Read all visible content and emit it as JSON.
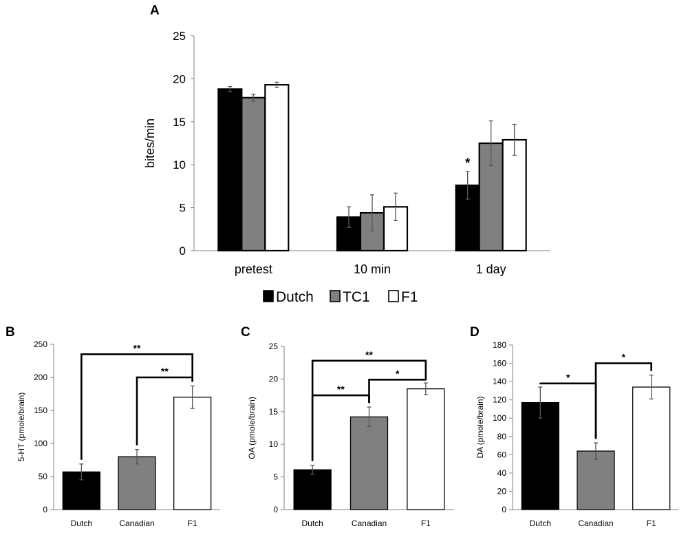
{
  "colors": {
    "Dutch": "#000000",
    "TC1": "#808080",
    "Canadian": "#808080",
    "F1": "#ffffff",
    "axis": "#808080",
    "error": "#555555"
  },
  "chart_data": [
    {
      "panel": "A",
      "type": "bar",
      "ylabel": "bites/min",
      "xlabel": "",
      "ylim": [
        0,
        25
      ],
      "yticks": [
        0,
        5,
        10,
        15,
        20,
        25
      ],
      "categories": [
        "pretest",
        "10 min",
        "1 day"
      ],
      "legend": {
        "placement": "bottom-center",
        "entries": [
          "Dutch",
          "TC1",
          "F1"
        ]
      },
      "series": [
        {
          "name": "Dutch",
          "values": [
            18.8,
            3.9,
            7.6
          ],
          "errors": [
            0.3,
            1.2,
            1.6
          ]
        },
        {
          "name": "TC1",
          "values": [
            17.8,
            4.4,
            12.5
          ],
          "errors": [
            0.4,
            2.1,
            2.6
          ]
        },
        {
          "name": "F1",
          "values": [
            19.3,
            5.1,
            12.9
          ],
          "errors": [
            0.3,
            1.6,
            1.8
          ]
        }
      ],
      "annotations": [
        {
          "text": "*",
          "series": "Dutch",
          "category": "1 day"
        }
      ]
    },
    {
      "panel": "B",
      "type": "bar",
      "ylabel": "5-HT (pmole/brain)",
      "xlabel": "",
      "ylim": [
        0,
        250
      ],
      "yticks": [
        0,
        50,
        100,
        150,
        200,
        250
      ],
      "categories": [
        "Dutch",
        "Canadian",
        "F1"
      ],
      "values": [
        57,
        80,
        170
      ],
      "errors": [
        12,
        11,
        17
      ],
      "significance": [
        {
          "from": "Dutch",
          "to": "F1",
          "level": 235,
          "text": "**"
        },
        {
          "from": "Canadian",
          "to": "F1",
          "level": 200,
          "text": "**"
        }
      ]
    },
    {
      "panel": "C",
      "type": "bar",
      "ylabel": "OA (pmole/brain)",
      "xlabel": "",
      "ylim": [
        0,
        25
      ],
      "yticks": [
        0,
        5,
        10,
        15,
        20,
        25
      ],
      "categories": [
        "Dutch",
        "Canadian",
        "F1"
      ],
      "values": [
        6.1,
        14.2,
        18.5
      ],
      "errors": [
        0.7,
        1.5,
        0.9
      ],
      "significance": [
        {
          "from": "Dutch",
          "to": "F1",
          "level": 22.8,
          "text": "**"
        },
        {
          "from": "Canadian",
          "to": "F1",
          "level": 19.9,
          "text": "*"
        },
        {
          "from": "Dutch",
          "to": "Canadian",
          "level": 17.5,
          "text": "**"
        }
      ]
    },
    {
      "panel": "D",
      "type": "bar",
      "ylabel": "DA (pmole/brain)",
      "xlabel": "",
      "ylim": [
        0,
        180
      ],
      "yticks": [
        0,
        20,
        40,
        60,
        80,
        100,
        120,
        140,
        160,
        180
      ],
      "categories": [
        "Dutch",
        "Canadian",
        "F1"
      ],
      "values": [
        117,
        64,
        134
      ],
      "errors": [
        17,
        9,
        13
      ],
      "significance": [
        {
          "from": "Dutch",
          "to": "Canadian",
          "level": 138,
          "text": "*"
        },
        {
          "from": "Canadian",
          "to": "F1",
          "level": 160,
          "text": "*"
        }
      ]
    }
  ]
}
